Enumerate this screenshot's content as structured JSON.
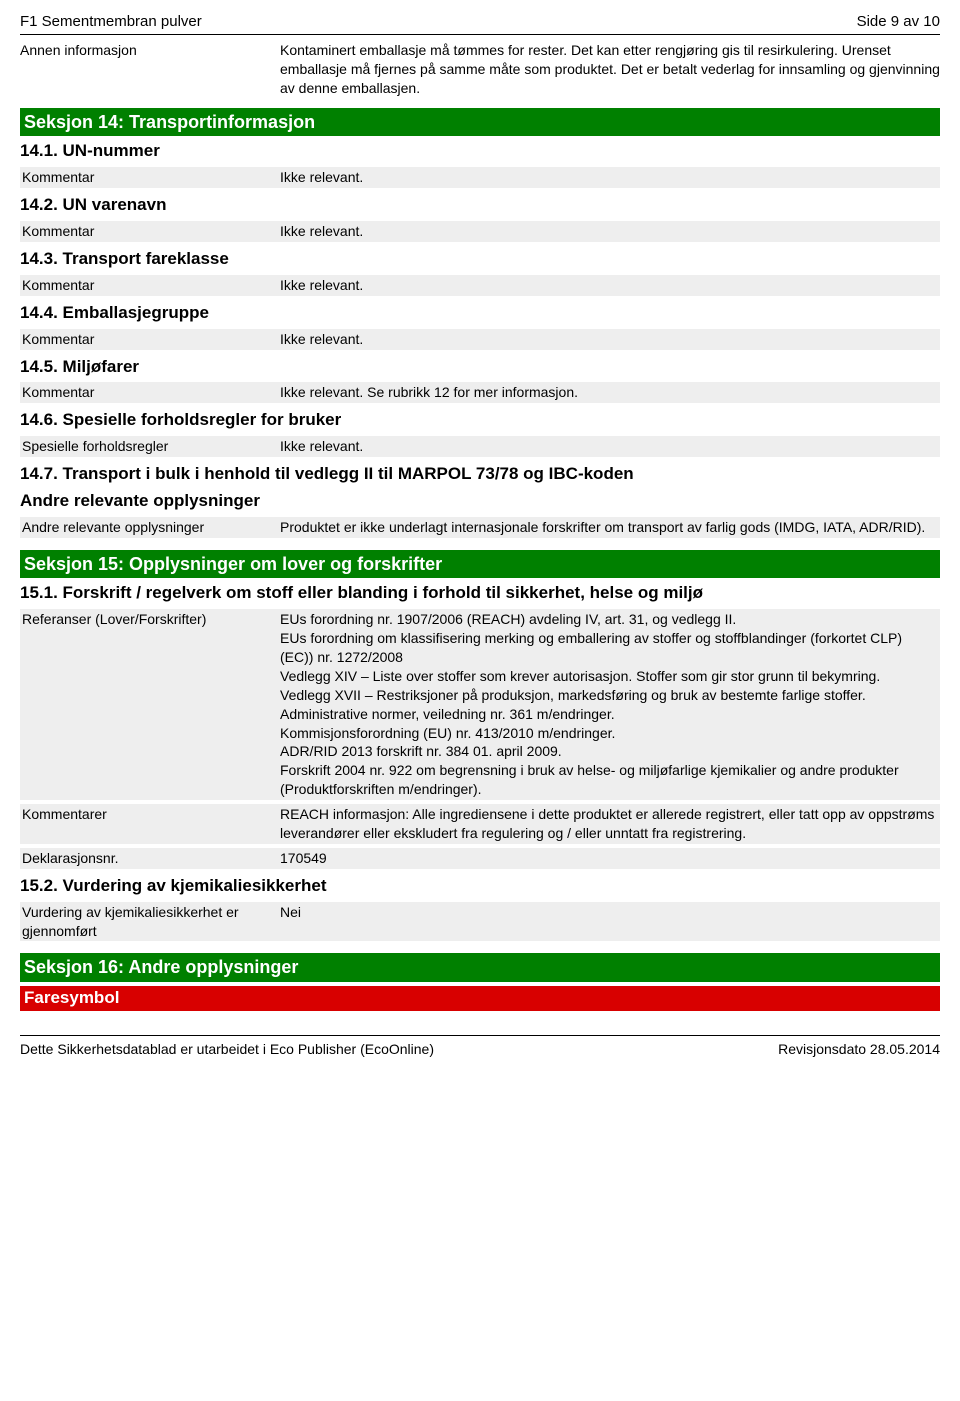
{
  "header": {
    "title": "F1 Sementmembran pulver",
    "page": "Side 9 av 10"
  },
  "intro": {
    "label": "Annen informasjon",
    "value": "Kontaminert emballasje må tømmes for rester. Det kan etter rengjøring gis til resirkulering. Urenset emballasje må fjernes på samme måte som produktet. Det er betalt vederlag for innsamling og gjenvinning av denne emballasjen."
  },
  "s14": {
    "title": "Seksjon 14: Transportinformasjon",
    "p1": {
      "heading": "14.1. UN-nummer",
      "label": "Kommentar",
      "value": "Ikke relevant."
    },
    "p2": {
      "heading": "14.2. UN varenavn",
      "label": "Kommentar",
      "value": "Ikke relevant."
    },
    "p3": {
      "heading": "14.3. Transport fareklasse",
      "label": "Kommentar",
      "value": "Ikke relevant."
    },
    "p4": {
      "heading": "14.4. Emballasjegruppe",
      "label": "Kommentar",
      "value": "Ikke relevant."
    },
    "p5": {
      "heading": "14.5. Miljøfarer",
      "label": "Kommentar",
      "value": "Ikke relevant. Se rubrikk 12 for mer informasjon."
    },
    "p6": {
      "heading": "14.6. Spesielle forholdsregler for bruker",
      "label": "Spesielle forholdsregler",
      "value": "Ikke relevant."
    },
    "p7": {
      "heading": "14.7. Transport i bulk i henhold til vedlegg II til MARPOL 73/78 og IBC-koden",
      "subheading": "Andre relevante opplysninger",
      "label": "Andre relevante opplysninger",
      "value": "Produktet er ikke underlagt internasjonale forskrifter om transport av farlig gods (IMDG, IATA, ADR/RID)."
    }
  },
  "s15": {
    "title": "Seksjon 15: Opplysninger om lover og forskrifter",
    "p1": {
      "heading": "15.1. Forskrift / regelverk om stoff eller blanding i forhold til sikkerhet, helse og miljø",
      "ref_label": "Referanser (Lover/Forskrifter)",
      "ref_value": "EUs forordning nr. 1907/2006 (REACH) avdeling IV, art. 31, og vedlegg II.\nEUs forordning om klassifisering merking og emballering av stoffer og stoffblandinger (forkortet CLP) (EC)) nr. 1272/2008\nVedlegg XIV – Liste over stoffer som krever autorisasjon. Stoffer som gir stor grunn til bekymring.\nVedlegg XVII – Restriksjoner på produksjon, markedsføring og bruk av bestemte farlige stoffer.\nAdministrative normer, veiledning nr. 361 m/endringer.\nKommisjonsforordning (EU) nr. 413/2010 m/endringer.\nADR/RID 2013 forskrift nr. 384 01. april 2009.\nForskrift 2004 nr. 922 om begrensning i bruk av helse- og miljøfarlige kjemikalier og andre produkter (Produktforskriften m/endringer).",
      "kom_label": "Kommentarer",
      "kom_value": "REACH informasjon: Alle ingrediensene i dette produktet er allerede registrert, eller tatt opp av oppstrøms leverandører eller ekskludert fra regulering og / eller unntatt fra registrering.",
      "dek_label": "Deklarasjonsnr.",
      "dek_value": "170549"
    },
    "p2": {
      "heading": "15.2. Vurdering av kjemikaliesikkerhet",
      "label": "Vurdering av kjemikaliesikkerhet er gjennomført",
      "value": "Nei"
    }
  },
  "s16": {
    "title": "Seksjon 16: Andre opplysninger",
    "faresymbol": "Faresymbol"
  },
  "footer": {
    "left": "Dette Sikkerhetsdatablad er utarbeidet i Eco Publisher (EcoOnline)",
    "right": "Revisjonsdato 28.05.2014"
  },
  "colors": {
    "green": "#008000",
    "red": "#d80000",
    "grey": "#eeeeee"
  }
}
